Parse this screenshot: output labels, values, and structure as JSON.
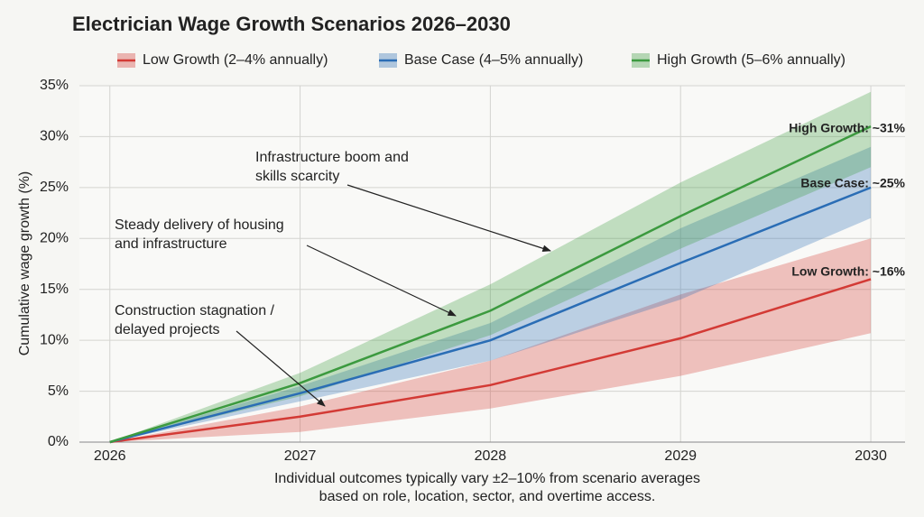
{
  "chart_data": {
    "type": "line",
    "title": "Electrician Wage Growth Scenarios 2026–2030",
    "ylabel": "Cumulative wage growth (%)",
    "x": [
      2026,
      2027,
      2028,
      2029,
      2030
    ],
    "xlim": [
      2025.84,
      2030.18
    ],
    "xticks": [
      2026,
      2027,
      2028,
      2029,
      2030
    ],
    "ylim": [
      0,
      35
    ],
    "yticks": [
      {
        "value": 0,
        "label": "0%"
      },
      {
        "value": 5,
        "label": "5%"
      },
      {
        "value": 10,
        "label": "10%"
      },
      {
        "value": 15,
        "label": "15%"
      },
      {
        "value": 20,
        "label": "20%"
      },
      {
        "value": 25,
        "label": "25%"
      },
      {
        "value": 30,
        "label": "30%"
      },
      {
        "value": 35,
        "label": "35%"
      }
    ],
    "grid": true,
    "series": [
      {
        "name": "Low Growth (2–4% annually)",
        "color": "#d33a35",
        "values": [
          0,
          2.5,
          5.6,
          10.2,
          16
        ],
        "lower": [
          0,
          1,
          3.3,
          6.5,
          10.7
        ],
        "upper": [
          0,
          3.5,
          8,
          14.5,
          20
        ]
      },
      {
        "name": "Base Case (4–5% annually)",
        "color": "#2a6db5",
        "values": [
          0,
          4.8,
          10,
          17.6,
          25
        ],
        "lower": [
          0,
          4,
          8,
          14,
          22
        ],
        "upper": [
          0,
          5.5,
          11.7,
          21,
          29
        ]
      },
      {
        "name": "High Growth (5–6% annually)",
        "color": "#3c9a3f",
        "values": [
          0,
          5.8,
          12.9,
          22.2,
          31
        ],
        "lower": [
          0,
          4.5,
          10.5,
          19,
          27
        ],
        "upper": [
          0,
          6.8,
          15.5,
          25.5,
          34.4
        ]
      }
    ],
    "end_labels": [
      "Low Growth: ~16%",
      "Base Case: ~25%",
      "High Growth: ~31%"
    ],
    "annotations": [
      [
        "Infrastructure boom and",
        "skills scarcity"
      ],
      [
        "Steady delivery of housing",
        "and infrastructure"
      ],
      [
        "Construction stagnation /",
        "delayed projects"
      ]
    ],
    "footnote": [
      "Individual outcomes typically vary ±2–10% from scenario averages",
      "based on role, location, sector, and overtime access."
    ]
  }
}
